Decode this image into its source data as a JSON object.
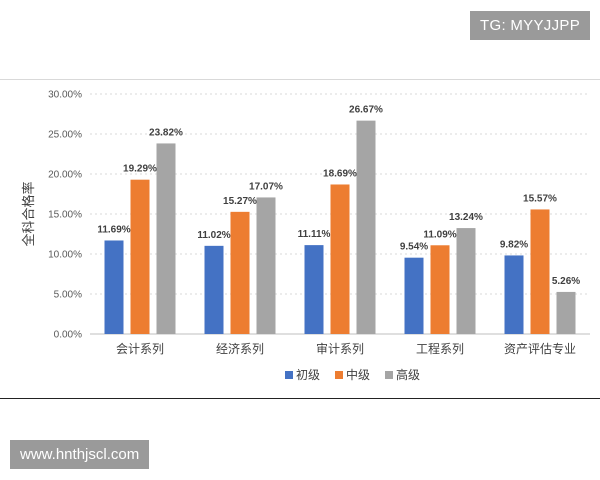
{
  "watermark_top": "TG: MYYJJPP",
  "watermark_bottom": "www.hnthjscl.com",
  "chart_data": {
    "type": "bar",
    "ylabel": "全科合格率",
    "ylim": [
      0,
      30
    ],
    "yticks": [
      "0.00%",
      "5.00%",
      "10.00%",
      "15.00%",
      "20.00%",
      "25.00%",
      "30.00%"
    ],
    "categories": [
      "会计系列",
      "经济系列",
      "审计系列",
      "工程系列",
      "资产评估专业"
    ],
    "grid": true,
    "legend_position": "bottom",
    "series": [
      {
        "name": "初级",
        "color": "#4472c4",
        "values": [
          11.69,
          11.02,
          11.11,
          9.54,
          9.82
        ],
        "labels": [
          "11.69%",
          "11.02%",
          "11.11%",
          "9.54%",
          "9.82%"
        ]
      },
      {
        "name": "中级",
        "color": "#ed7d31",
        "values": [
          19.29,
          15.27,
          18.69,
          11.09,
          15.57
        ],
        "labels": [
          "19.29%",
          "15.27%",
          "18.69%",
          "11.09%",
          "15.57%"
        ]
      },
      {
        "name": "高级",
        "color": "#a5a5a5",
        "values": [
          23.82,
          17.07,
          26.67,
          13.24,
          5.26
        ],
        "labels": [
          "23.82%",
          "17.07%",
          "26.67%",
          "13.24%",
          "5.26%"
        ]
      }
    ]
  }
}
